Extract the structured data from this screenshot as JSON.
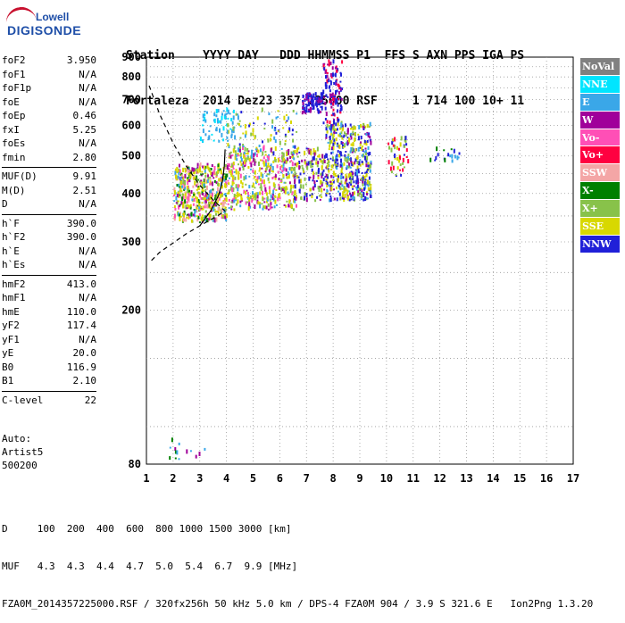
{
  "logo": {
    "line1": "Lowell",
    "line2": "DIGISONDE"
  },
  "header": {
    "row1": "Station    YYYY DAY   DDD HHMMSS P1  FFS S AXN PPS IGA PS",
    "row2": "Fortaleza  2014 Dez23 357 225000 RSF     1 714 100 10+ 11"
  },
  "params": [
    {
      "name": "foF2",
      "value": "3.950"
    },
    {
      "name": "foF1",
      "value": "N/A"
    },
    {
      "name": "foF1p",
      "value": "N/A"
    },
    {
      "name": "foE",
      "value": "N/A"
    },
    {
      "name": "foEp",
      "value": "0.46"
    },
    {
      "name": "fxI",
      "value": "5.25"
    },
    {
      "name": "foEs",
      "value": "N/A"
    },
    {
      "name": "fmin",
      "value": "2.80"
    },
    {
      "sep": true
    },
    {
      "name": "MUF(D)",
      "value": "9.91"
    },
    {
      "name": "M(D)",
      "value": "2.51"
    },
    {
      "name": "D",
      "value": "N/A"
    },
    {
      "sep": true
    },
    {
      "name": "h`F",
      "value": "390.0"
    },
    {
      "name": "h`F2",
      "value": "390.0"
    },
    {
      "name": "h`E",
      "value": "N/A"
    },
    {
      "name": "h`Es",
      "value": "N/A"
    },
    {
      "sep": true
    },
    {
      "name": "hmF2",
      "value": "413.0"
    },
    {
      "name": "hmF1",
      "value": "N/A"
    },
    {
      "name": "hmE",
      "value": "110.0"
    },
    {
      "name": "yF2",
      "value": "117.4"
    },
    {
      "name": "yF1",
      "value": "N/A"
    },
    {
      "name": "yE",
      "value": "20.0"
    },
    {
      "name": "B0",
      "value": "116.9"
    },
    {
      "name": "B1",
      "value": "2.10"
    },
    {
      "sep": true
    },
    {
      "name": "C-level",
      "value": "22"
    }
  ],
  "auto": {
    "line1": "Auto:",
    "line2": "Artist5",
    "line3": "500200"
  },
  "footer": {
    "d_row": "D     100  200  400  600  800 1000 1500 3000 [km]",
    "muf_row": "MUF   4.3  4.3  4.4  4.7  5.0  5.4  6.7  9.9 [MHz]",
    "file_row": "FZA0M_2014357225000.RSF / 320fx256h 50 kHz 5.0 km / DPS-4 FZA0M 904 / 3.9 S 321.6 E   Ion2Png 1.3.20"
  },
  "legend": [
    {
      "label": "NoVal",
      "color": "#808080"
    },
    {
      "label": "NNE",
      "color": "#00e5ff"
    },
    {
      "label": "E",
      "color": "#3aa7e8"
    },
    {
      "label": "W",
      "color": "#a0009a"
    },
    {
      "label": "Vo-",
      "color": "#ff4fb6"
    },
    {
      "label": "Vo+",
      "color": "#ff0040"
    },
    {
      "label": "SSW",
      "color": "#f4a6a6"
    },
    {
      "label": "X-",
      "color": "#008000"
    },
    {
      "label": "X+",
      "color": "#88c24a"
    },
    {
      "label": "SSE",
      "color": "#d8d800"
    },
    {
      "label": "NNW",
      "color": "#2020d8"
    }
  ],
  "chart_data": {
    "type": "scatter",
    "xlim": [
      1,
      17
    ],
    "ylim": [
      80,
      900
    ],
    "x_ticks": [
      1,
      2,
      3,
      4,
      5,
      6,
      7,
      8,
      9,
      10,
      11,
      12,
      13,
      14,
      15,
      16,
      17
    ],
    "y_ticks": [
      80,
      200,
      300,
      400,
      500,
      600,
      700,
      800,
      900
    ],
    "y_scale": "log",
    "grid": "dotted",
    "legend_position": "right",
    "clusters": [
      {
        "x0": 2.0,
        "x1": 4.0,
        "y0": 335,
        "y1": 470,
        "colors": [
          "#d8d800",
          "#d8d800",
          "#d8d800",
          "#3aa7e8",
          "#ff4fb6",
          "#88c24a",
          "#008000",
          "#a0009a",
          "#f4a6a6"
        ],
        "n": 520
      },
      {
        "x0": 3.0,
        "x1": 4.3,
        "y0": 540,
        "y1": 650,
        "colors": [
          "#3aa7e8",
          "#3aa7e8",
          "#00e5ff"
        ],
        "n": 60
      },
      {
        "x0": 4.0,
        "x1": 6.6,
        "y0": 360,
        "y1": 520,
        "colors": [
          "#d8d800",
          "#d8d800",
          "#3aa7e8",
          "#88c24a",
          "#a0009a",
          "#ff4fb6"
        ],
        "n": 420
      },
      {
        "x0": 4.0,
        "x1": 6.6,
        "y0": 500,
        "y1": 650,
        "colors": [
          "#d8d800",
          "#88c24a",
          "#2020d8",
          "#3aa7e8"
        ],
        "n": 90
      },
      {
        "x0": 6.8,
        "x1": 7.6,
        "y0": 640,
        "y1": 720,
        "colors": [
          "#2020d8",
          "#2020d8",
          "#a0009a"
        ],
        "n": 90
      },
      {
        "x0": 6.5,
        "x1": 7.7,
        "y0": 380,
        "y1": 520,
        "colors": [
          "#d8d800",
          "#88c24a",
          "#2020d8",
          "#a0009a"
        ],
        "n": 140
      },
      {
        "x0": 7.7,
        "x1": 9.4,
        "y0": 380,
        "y1": 600,
        "colors": [
          "#2020d8",
          "#2020d8",
          "#a0009a",
          "#d8d800",
          "#d8d800",
          "#88c24a",
          "#3aa7e8"
        ],
        "n": 460
      },
      {
        "x0": 7.6,
        "x1": 8.3,
        "y0": 600,
        "y1": 870,
        "colors": [
          "#2020d8",
          "#2020d8",
          "#a0009a",
          "#ff0040"
        ],
        "n": 110
      },
      {
        "x0": 10.0,
        "x1": 10.8,
        "y0": 440,
        "y1": 550,
        "colors": [
          "#d8d800",
          "#88c24a",
          "#2020d8",
          "#ff0040"
        ],
        "n": 45
      },
      {
        "x0": 11.5,
        "x1": 12.8,
        "y0": 480,
        "y1": 520,
        "colors": [
          "#2020d8",
          "#3aa7e8",
          "#008000"
        ],
        "n": 18
      },
      {
        "x0": 1.8,
        "x1": 3.2,
        "y0": 82,
        "y1": 92,
        "colors": [
          "#a0009a",
          "#3aa7e8",
          "#008000"
        ],
        "n": 14
      }
    ],
    "curves": [
      {
        "name": "solid",
        "style": "solid",
        "points": [
          [
            3.0,
            330
          ],
          [
            3.4,
            360
          ],
          [
            3.7,
            395
          ],
          [
            3.85,
            430
          ],
          [
            3.92,
            470
          ],
          [
            3.95,
            520
          ]
        ]
      },
      {
        "name": "dashed",
        "style": "dashed",
        "points": [
          [
            1.1,
            760
          ],
          [
            1.5,
            640
          ],
          [
            2.0,
            540
          ],
          [
            2.5,
            470
          ],
          [
            3.0,
            420
          ],
          [
            3.5,
            385
          ],
          [
            3.95,
            360
          ],
          [
            3.5,
            345
          ],
          [
            3.0,
            330
          ],
          [
            2.5,
            315
          ],
          [
            2.0,
            298
          ],
          [
            1.5,
            282
          ],
          [
            1.1,
            265
          ]
        ]
      }
    ]
  }
}
